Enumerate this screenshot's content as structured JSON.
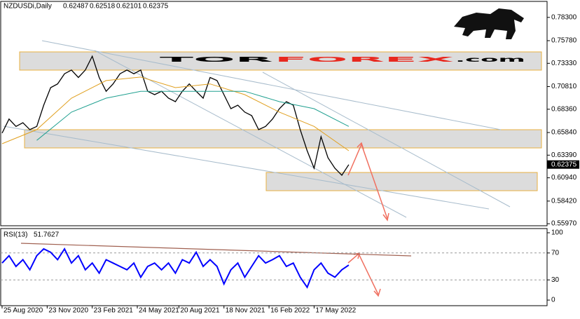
{
  "logo": {
    "part1": "TOR",
    "part2": "FOREX",
    "part3": ".com"
  },
  "chart_data": [
    {
      "type": "line",
      "symbol": "NZDUSDi,Daily",
      "ohlc": [
        0.62487,
        0.62518,
        0.62101,
        0.62375
      ],
      "last_price": 0.62375,
      "xlim": [
        -0.4,
        157.2
      ],
      "ylim": [
        0.5575,
        0.8003
      ],
      "yticks": [
        {
          "value": 0.783,
          "label": "0.78300"
        },
        {
          "value": 0.7578,
          "label": "0.75780"
        },
        {
          "value": 0.7333,
          "label": "0.73330"
        },
        {
          "value": 0.7081,
          "label": "0.70810"
        },
        {
          "value": 0.6836,
          "label": "0.68360"
        },
        {
          "value": 0.6584,
          "label": "0.65840"
        },
        {
          "value": 0.6339,
          "label": "0.63390"
        },
        {
          "value": 0.6094,
          "label": "0.60940"
        },
        {
          "value": 0.5842,
          "label": "0.58420"
        },
        {
          "value": 0.5597,
          "label": "0.55970"
        }
      ],
      "series": [
        {
          "color": "#000000",
          "x": [
            0,
            2,
            4,
            6,
            8,
            10,
            12,
            14,
            16,
            18,
            20,
            22,
            24,
            26,
            28,
            30,
            32,
            34,
            36,
            38,
            40,
            42,
            44,
            46,
            48,
            50,
            52,
            54,
            56,
            58,
            60,
            62,
            64,
            66,
            68,
            70,
            72,
            74,
            76,
            78,
            80,
            82,
            84,
            86,
            88,
            90,
            92,
            94,
            96,
            98,
            100
          ],
          "values": [
            0.6577,
            0.673,
            0.665,
            0.669,
            0.6615,
            0.665,
            0.688,
            0.707,
            0.711,
            0.722,
            0.726,
            0.718,
            0.726,
            0.741,
            0.718,
            0.703,
            0.711,
            0.722,
            0.726,
            0.722,
            0.726,
            0.703,
            0.6994,
            0.703,
            0.6956,
            0.6918,
            0.703,
            0.711,
            0.703,
            0.6956,
            0.718,
            0.7146,
            0.6994,
            0.6842,
            0.688,
            0.6805,
            0.6767,
            0.6615,
            0.665,
            0.673,
            0.6842,
            0.6918,
            0.688,
            0.6615,
            0.6387,
            0.6197,
            0.6539,
            0.6311,
            0.6197,
            0.6121,
            0.6237
          ]
        },
        {
          "color": "#e0a020",
          "x": [
            0,
            10,
            20,
            30,
            40,
            50,
            60,
            70,
            80,
            90,
            100
          ],
          "values": [
            0.6463,
            0.6615,
            0.6956,
            0.7146,
            0.7184,
            0.707,
            0.711,
            0.6994,
            0.6805,
            0.665,
            0.6387
          ]
        },
        {
          "color": "#20a090",
          "x": [
            10,
            20,
            30,
            40,
            50,
            60,
            70,
            80,
            90,
            100
          ],
          "values": [
            0.6499,
            0.6805,
            0.6956,
            0.703,
            0.703,
            0.703,
            0.703,
            0.6918,
            0.6842,
            0.665
          ]
        }
      ]
    },
    {
      "type": "line",
      "indicator": "RSI(13)",
      "indicator_value": 51.7627,
      "xlim": [
        -0.4,
        157.2
      ],
      "ylim": [
        -8.3,
        106.25
      ],
      "yticks": [
        100,
        70,
        30,
        0
      ],
      "xticks": [
        {
          "value": 0,
          "label": "25 Aug 2020"
        },
        {
          "value": 13,
          "label": "23 Nov 2020"
        },
        {
          "value": 26,
          "label": "23 Feb 2021"
        },
        {
          "value": 39,
          "label": "24 May 2021"
        },
        {
          "value": 51,
          "label": "20 Aug 2021"
        },
        {
          "value": 64,
          "label": "18 Nov 2021"
        },
        {
          "value": 77,
          "label": "16 Feb 2022"
        },
        {
          "value": 90,
          "label": "17 May 2022"
        }
      ],
      "series": [
        {
          "color": "#0000ff",
          "x": [
            0,
            2,
            4,
            6,
            8,
            10,
            12,
            14,
            16,
            18,
            20,
            22,
            24,
            26,
            28,
            30,
            32,
            34,
            36,
            38,
            40,
            42,
            44,
            46,
            48,
            50,
            52,
            54,
            56,
            58,
            60,
            62,
            64,
            66,
            68,
            70,
            72,
            74,
            76,
            78,
            80,
            82,
            84,
            86,
            88,
            90,
            92,
            94,
            96,
            98,
            100
          ],
          "values": [
            55,
            66,
            50,
            60,
            45,
            66,
            76,
            71,
            60,
            76,
            55,
            66,
            45,
            55,
            40,
            60,
            55,
            50,
            45,
            55,
            34,
            50,
            55,
            45,
            55,
            40,
            60,
            55,
            71,
            50,
            60,
            50,
            24,
            45,
            55,
            34,
            50,
            66,
            55,
            60,
            66,
            50,
            55,
            34,
            19,
            45,
            55,
            40,
            34,
            45,
            52
          ]
        }
      ]
    }
  ]
}
